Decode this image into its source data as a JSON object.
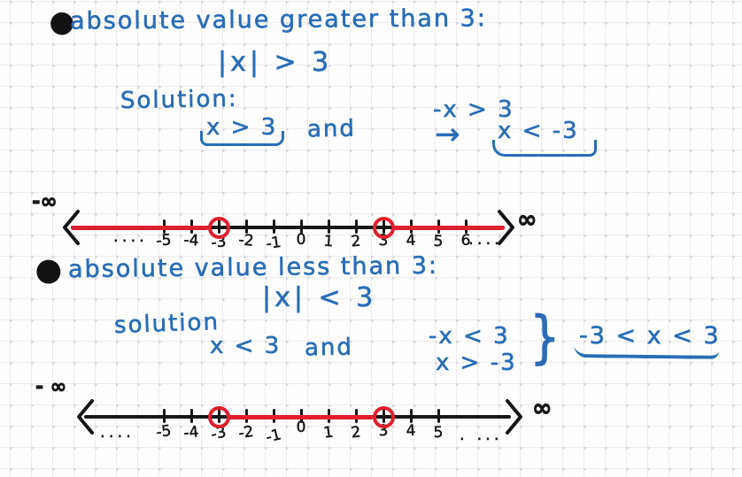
{
  "ink_colors": {
    "blue": "#2b6db6",
    "black": "#171717",
    "red": "#e01f2e"
  },
  "sections": [
    {
      "bullet": "●",
      "title": "absolute value greater than 3:",
      "equation": "|x| > 3",
      "solution_label": "Solution:",
      "case_positive": "x > 3",
      "conjunction": "and",
      "negation_step": "-x > 3",
      "arrow": "→",
      "case_negative": "x < -3"
    },
    {
      "bullet": "●",
      "title": "absolute value less than 3:",
      "equation": "|x| < 3",
      "solution_label": "solution",
      "case_positive": "x < 3",
      "conjunction": "and",
      "negation_step": "-x < 3",
      "negation_result": "x > -3",
      "brace": "}",
      "combined_result": "-3 < x < 3"
    }
  ],
  "number_lines": [
    {
      "id": "abs-value-greater-than-3",
      "tick_values": [
        -5,
        -4,
        -3,
        -2,
        -1,
        0,
        1,
        2,
        3,
        4,
        5,
        6
      ],
      "tick_labels": [
        "-5",
        "-4",
        "-3",
        "-2",
        "-1",
        "0",
        "1",
        "2",
        "3",
        "4",
        "5",
        "6"
      ],
      "open_circles": [
        -3,
        3
      ],
      "shaded_segments": [
        [
          "-inf",
          -3
        ],
        [
          3,
          "inf"
        ]
      ],
      "shade_color": "#e01f2e",
      "neg_infinity": "-∞",
      "pos_infinity": "∞",
      "dots_left": "....",
      "dots_right": "...."
    },
    {
      "id": "abs-value-less-than-3",
      "tick_values": [
        -5,
        -4,
        -3,
        -2,
        -1,
        0,
        1,
        2,
        3,
        4,
        5
      ],
      "tick_labels": [
        "-5",
        "-4",
        "-3",
        "-2",
        "-1",
        "0",
        "1",
        "2",
        "3",
        "4",
        "5"
      ],
      "open_circles": [
        -3,
        3
      ],
      "shaded_segments": [
        [
          -3,
          3
        ]
      ],
      "shade_color": "#e01f2e",
      "neg_infinity": "- ∞",
      "pos_infinity": "∞",
      "dots_left": "....",
      "dots_right": ". ..."
    }
  ]
}
